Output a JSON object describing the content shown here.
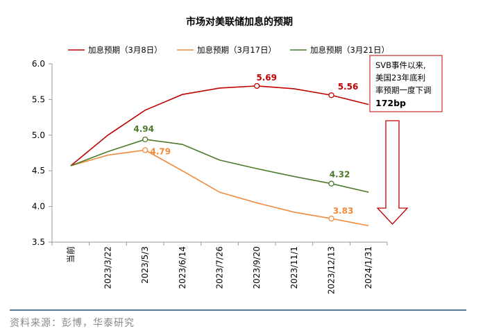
{
  "chart_data": {
    "type": "line",
    "title": "市场对美联储加息的预期",
    "categories": [
      "当前",
      "2023/3/22",
      "2023/5/3",
      "2023/6/14",
      "2023/7/26",
      "2023/9/20",
      "2023/11/1",
      "2023/12/13",
      "2024/1/31"
    ],
    "ylim": [
      3.5,
      6.0
    ],
    "yticks": [
      "6.0",
      "5.5",
      "5.0",
      "4.5",
      "4.0",
      "3.5"
    ],
    "xlabel": "",
    "ylabel": "",
    "series": [
      {
        "name": "加息预期（3月8日）",
        "color": "#c00000",
        "values": [
          4.57,
          5.0,
          5.35,
          5.57,
          5.66,
          5.69,
          5.65,
          5.56,
          5.43
        ],
        "markers": [
          {
            "index": 5,
            "label": "5.69"
          },
          {
            "index": 7,
            "label": "5.56"
          }
        ]
      },
      {
        "name": "加息预期（3月17日）",
        "color": "#f08a3c",
        "values": [
          4.57,
          4.72,
          4.79,
          4.5,
          4.2,
          4.05,
          3.92,
          3.83,
          3.73
        ],
        "markers": [
          {
            "index": 2,
            "label": "4.79"
          },
          {
            "index": 7,
            "label": "3.83"
          }
        ]
      },
      {
        "name": "加息预期（3月21日）",
        "color": "#4a7a2a",
        "values": [
          4.57,
          4.77,
          4.94,
          4.87,
          4.65,
          4.53,
          4.42,
          4.32,
          4.2
        ],
        "markers": [
          {
            "index": 2,
            "label": "4.94"
          },
          {
            "index": 7,
            "label": "4.32"
          }
        ]
      }
    ],
    "annotation": {
      "lines": [
        "SVB事件以来,",
        "美国23年底利",
        "率预期一度下调"
      ],
      "bold": "172bp"
    }
  },
  "source": "资料来源：彭博，华泰研究"
}
